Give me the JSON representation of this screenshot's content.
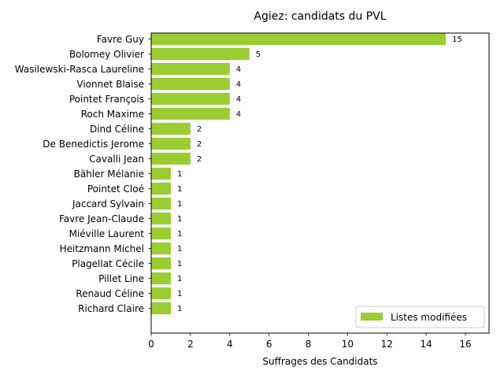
{
  "chart_data": {
    "type": "bar",
    "orientation": "horizontal",
    "title": "Agiez: candidats du PVL",
    "xlabel": "Suffrages des Candidats",
    "ylabel": "",
    "xlim": [
      0,
      17.2
    ],
    "xticks": [
      0,
      2,
      4,
      6,
      8,
      10,
      12,
      14,
      16
    ],
    "grid": false,
    "legend_position": "bottom-right",
    "bar_color": "#9acd32",
    "categories": [
      "Favre Guy",
      "Bolomey Olivier",
      "Wasilewski-Rasca Laureline",
      "Vionnet Blaise",
      "Pointet François",
      "Roch Maxime",
      "Dind Céline",
      "De Benedictis Jerome",
      "Cavalli Jean",
      "Bähler Mélanie",
      "Pointet Cloé",
      "Jaccard Sylvain",
      "Favre Jean-Claude",
      "Miéville Laurent",
      "Heitzmann Michel",
      "Plagellat Cécile",
      "Pillet Line",
      "Renaud Céline",
      "Richard Claire"
    ],
    "series": [
      {
        "name": "Listes modifiées",
        "values": [
          15,
          5,
          4,
          4,
          4,
          4,
          2,
          2,
          2,
          1,
          1,
          1,
          1,
          1,
          1,
          1,
          1,
          1,
          1
        ]
      }
    ]
  }
}
